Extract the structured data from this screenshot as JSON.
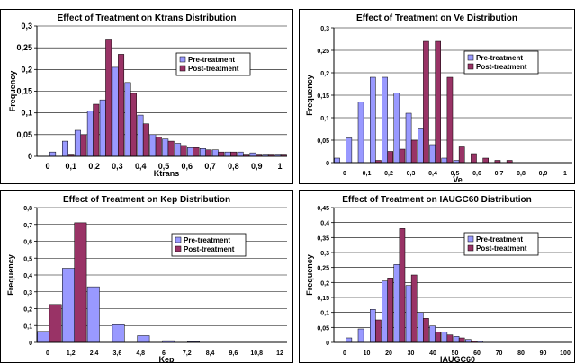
{
  "chart_data": [
    {
      "type": "bar",
      "title": "Effect of Treatment on Ktrans Distribution",
      "xlabel": "Ktrans",
      "ylabel": "Frequency",
      "ylim": [
        0,
        0.3
      ],
      "yticks": [
        "0",
        "0,05",
        "0,1",
        "0,15",
        "0,2",
        "0,25",
        "0,3"
      ],
      "xlim": [
        0,
        1
      ],
      "xticks": [
        "0",
        "0,1",
        "0,2",
        "0,3",
        "0,4",
        "0,5",
        "0,6",
        "0,7",
        "0,8",
        "0,9",
        "1"
      ],
      "legend": "right",
      "grid": true,
      "categories": [
        0.05,
        0.1,
        0.15,
        0.2,
        0.25,
        0.3,
        0.35,
        0.4,
        0.45,
        0.5,
        0.55,
        0.6,
        0.65,
        0.7,
        0.75,
        0.8,
        0.85,
        0.9,
        0.95,
        1.0
      ],
      "series": [
        {
          "name": "Pre-treatment",
          "color": "#9999ff",
          "values": [
            0,
            0.01,
            0.035,
            0.06,
            0.105,
            0.13,
            0.205,
            0.17,
            0.095,
            0.05,
            0.04,
            0.03,
            0.02,
            0.018,
            0.015,
            0.01,
            0.01,
            0.008,
            0.005,
            0.005
          ]
        },
        {
          "name": "Post-treatment",
          "color": "#993366",
          "values": [
            0,
            0,
            0.005,
            0.05,
            0.12,
            0.27,
            0.235,
            0.145,
            0.075,
            0.045,
            0.035,
            0.025,
            0.02,
            0.015,
            0.01,
            0.01,
            0.005,
            0.005,
            0.005,
            0.005
          ]
        }
      ]
    },
    {
      "type": "bar",
      "title": "Effect of Treatment on Ve Distribution",
      "xlabel": "Ve",
      "ylabel": "Frequency",
      "ylim": [
        0,
        0.3
      ],
      "yticks": [
        "0",
        "0,05",
        "0,1",
        "0,15",
        "0,2",
        "0,25",
        "0,3"
      ],
      "xlim": [
        0,
        1
      ],
      "xticks": [
        "0",
        "0,1",
        "0,2",
        "0,3",
        "0,4",
        "0,5",
        "0,6",
        "0,7",
        "0,8",
        "0,9",
        "1"
      ],
      "legend": "right",
      "grid": true,
      "categories": [
        0.05,
        0.1,
        0.15,
        0.2,
        0.25,
        0.3,
        0.35,
        0.4,
        0.45,
        0.5,
        0.55,
        0.6,
        0.65,
        0.7,
        0.75,
        0.8,
        0.85,
        0.9,
        0.95,
        1.0
      ],
      "series": [
        {
          "name": "Pre-treatment",
          "color": "#9999ff",
          "values": [
            0.01,
            0.055,
            0.135,
            0.19,
            0.19,
            0.155,
            0.11,
            0.075,
            0.04,
            0.01,
            0.005,
            0,
            0,
            0,
            0,
            0,
            0,
            0,
            0,
            0
          ]
        },
        {
          "name": "Post-treatment",
          "color": "#993366",
          "values": [
            0,
            0,
            0,
            0.005,
            0.025,
            0.03,
            0.05,
            0.27,
            0.27,
            0.19,
            0.035,
            0.02,
            0.01,
            0.005,
            0.005,
            0,
            0,
            0,
            0,
            0
          ]
        }
      ]
    },
    {
      "type": "bar",
      "title": "Effect of Treatment on Kep Distribution",
      "xlabel": "Kep",
      "ylabel": "Frequency",
      "ylim": [
        0,
        0.8
      ],
      "yticks": [
        "0",
        "0,1",
        "0,2",
        "0,3",
        "0,4",
        "0,5",
        "0,6",
        "0,7",
        "0,8"
      ],
      "xlim": [
        0,
        12
      ],
      "xticks": [
        "0",
        "1,2",
        "2,4",
        "3,6",
        "4,8",
        "6",
        "7,2",
        "8,4",
        "9,6",
        "10,8",
        "12"
      ],
      "legend": "right",
      "grid": true,
      "categories": [
        0.6,
        1.2,
        1.8,
        2.4,
        3.0,
        3.6,
        4.2,
        4.8,
        5.4,
        6.0
      ],
      "series": [
        {
          "name": "Pre-treatment",
          "color": "#9999ff",
          "values": [
            0.065,
            0.44,
            0.33,
            0.105,
            0.04,
            0.01,
            0.005,
            0,
            0,
            0
          ]
        },
        {
          "name": "Post-treatment",
          "color": "#993366",
          "values": [
            0.225,
            0.71,
            0,
            0,
            0,
            0,
            0,
            0,
            0,
            0
          ]
        }
      ]
    },
    {
      "type": "bar",
      "title": "Effect of Treatment on IAUGC60 Distribution",
      "xlabel": "IAUGC60",
      "ylabel": "Frequency",
      "ylim": [
        0,
        0.45
      ],
      "yticks": [
        "0",
        "0,05",
        "0,1",
        "0,15",
        "0,2",
        "0,25",
        "0,3",
        "0,35",
        "0,4",
        "0,45"
      ],
      "xlim": [
        0,
        100
      ],
      "xticks": [
        "0",
        "10",
        "20",
        "30",
        "40",
        "50",
        "60",
        "70",
        "80",
        "90",
        "100"
      ],
      "legend": "right",
      "grid": true,
      "categories": [
        5,
        10,
        15,
        20,
        25,
        30,
        35,
        40,
        45,
        50,
        55,
        60,
        65,
        70,
        75,
        80,
        85,
        90,
        95,
        100
      ],
      "series": [
        {
          "name": "Pre-treatment",
          "color": "#9999ff",
          "values": [
            0,
            0.015,
            0.045,
            0.11,
            0.205,
            0.26,
            0.19,
            0.1,
            0.055,
            0.035,
            0.02,
            0.01,
            0.005,
            0,
            0,
            0,
            0,
            0,
            0,
            0
          ]
        },
        {
          "name": "Post-treatment",
          "color": "#993366",
          "values": [
            0,
            0,
            0,
            0.075,
            0.215,
            0.38,
            0.225,
            0.08,
            0.035,
            0.025,
            0.015,
            0.005,
            0,
            0,
            0,
            0,
            0,
            0,
            0,
            0
          ]
        }
      ]
    }
  ]
}
